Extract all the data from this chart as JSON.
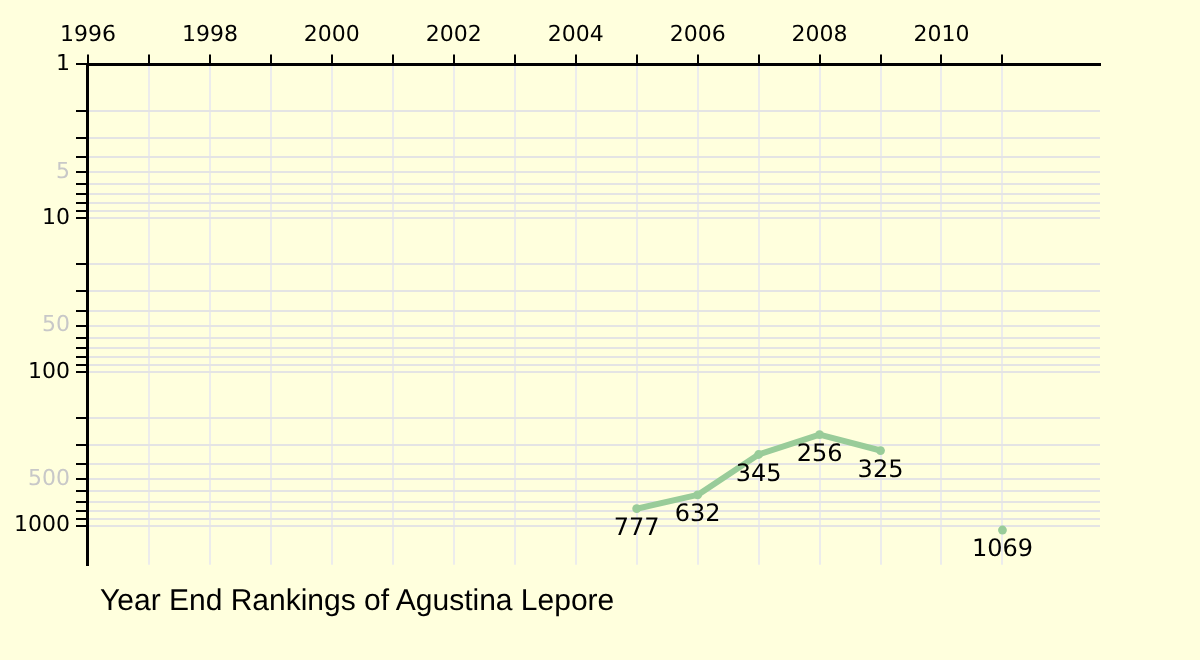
{
  "chart_data": {
    "type": "line",
    "title": "Year End Rankings of Agustina Lepore",
    "x": [
      2005,
      2006,
      2007,
      2008,
      2009,
      2010,
      2011
    ],
    "series": [
      {
        "color": "#99cc99",
        "values": [
          777,
          632,
          345,
          256,
          325,
          null,
          1069
        ]
      }
    ],
    "xlim": [
      1996,
      2012.6
    ],
    "xticks": [
      1996,
      {
        "value": 1997,
        "label": null
      },
      1998,
      {
        "value": 1999,
        "label": null
      },
      2000,
      {
        "value": 2001,
        "label": null
      },
      2002,
      {
        "value": 2003,
        "label": null
      },
      2004,
      {
        "value": 2005,
        "label": null
      },
      2006,
      {
        "value": 2007,
        "label": null
      },
      2008,
      {
        "value": 2009,
        "label": null
      },
      2010,
      {
        "value": 2011,
        "label": null
      }
    ],
    "ylim": [
      1800,
      1
    ],
    "yticks": [
      1,
      {
        "value": 2,
        "label": null
      },
      {
        "value": 3,
        "label": null
      },
      {
        "value": 4,
        "label": null
      },
      5,
      {
        "value": 6,
        "label": null
      },
      {
        "value": 7,
        "label": null
      },
      {
        "value": 8,
        "label": null
      },
      {
        "value": 9,
        "label": null
      },
      10,
      {
        "value": 20,
        "label": null
      },
      {
        "value": 30,
        "label": null
      },
      {
        "value": 40,
        "label": null
      },
      50,
      {
        "value": 60,
        "label": null
      },
      {
        "value": 70,
        "label": null
      },
      {
        "value": 80,
        "label": null
      },
      {
        "value": 90,
        "label": null
      },
      100,
      {
        "value": 200,
        "label": null
      },
      {
        "value": 300,
        "label": null
      },
      {
        "value": 400,
        "label": null
      },
      500,
      {
        "value": 600,
        "label": null
      },
      {
        "value": 700,
        "label": null
      },
      {
        "value": 800,
        "label": null
      },
      {
        "value": 900,
        "label": null
      },
      1000
    ],
    "log": "y",
    "grid": true,
    "legend": false,
    "marker": "circle",
    "line_style": "solid",
    "data_labels": true
  }
}
